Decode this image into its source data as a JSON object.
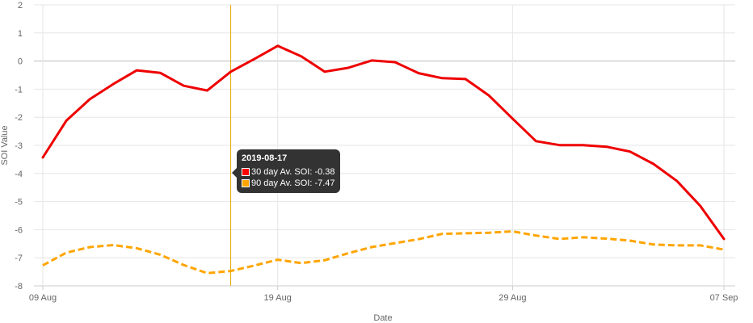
{
  "chart_data": {
    "type": "line",
    "xlabel": "Date",
    "ylabel": "SOI Value",
    "ylim": [
      -8,
      2
    ],
    "yticks": [
      2,
      1,
      0,
      -1,
      -2,
      -3,
      -4,
      -5,
      -6,
      -7,
      -8
    ],
    "x_start": "2019-08-09",
    "x_end": "2019-09-07",
    "xticks": [
      {
        "date": "2019-08-09",
        "label": "09 Aug"
      },
      {
        "date": "2019-08-19",
        "label": "19 Aug"
      },
      {
        "date": "2019-08-29",
        "label": "29 Aug"
      },
      {
        "date": "2019-09-07",
        "label": "07 Sep"
      }
    ],
    "x": [
      "2019-08-09",
      "2019-08-10",
      "2019-08-11",
      "2019-08-12",
      "2019-08-13",
      "2019-08-14",
      "2019-08-15",
      "2019-08-16",
      "2019-08-17",
      "2019-08-18",
      "2019-08-19",
      "2019-08-20",
      "2019-08-21",
      "2019-08-22",
      "2019-08-23",
      "2019-08-24",
      "2019-08-25",
      "2019-08-26",
      "2019-08-27",
      "2019-08-28",
      "2019-08-29",
      "2019-08-30",
      "2019-08-31",
      "2019-09-01",
      "2019-09-02",
      "2019-09-03",
      "2019-09-04",
      "2019-09-05",
      "2019-09-06",
      "2019-09-07"
    ],
    "series": [
      {
        "name": "30 day Av. SOI",
        "color": "#ee0000",
        "dashed": false,
        "values": [
          -3.43,
          -2.12,
          -1.36,
          -0.82,
          -0.33,
          -0.42,
          -0.88,
          -1.05,
          -0.38,
          0.07,
          0.54,
          0.17,
          -0.38,
          -0.24,
          0.02,
          -0.04,
          -0.43,
          -0.61,
          -0.64,
          -1.23,
          -2.05,
          -2.85,
          -2.99,
          -2.99,
          -3.05,
          -3.22,
          -3.66,
          -4.27,
          -5.16,
          -6.33
        ]
      },
      {
        "name": "90 day Av. SOI",
        "color": "#ffa500",
        "dashed": true,
        "values": [
          -7.27,
          -6.82,
          -6.62,
          -6.55,
          -6.66,
          -6.89,
          -7.26,
          -7.55,
          -7.47,
          -7.28,
          -7.07,
          -7.19,
          -7.09,
          -6.84,
          -6.62,
          -6.48,
          -6.34,
          -6.15,
          -6.13,
          -6.11,
          -6.06,
          -6.21,
          -6.33,
          -6.27,
          -6.32,
          -6.39,
          -6.53,
          -6.56,
          -6.56,
          -6.71
        ]
      }
    ],
    "crosshair_date": "2019-08-17",
    "crosshair_color": "#e6a800",
    "zero_line_color": "#bbbbbb",
    "grid_color": "#e6e6e6",
    "grid": true,
    "tooltip": {
      "title": "2019-08-17",
      "rows": [
        {
          "label": "30 day Av. SOI: -0.38",
          "color": "#ff0000"
        },
        {
          "label": "90 day Av. SOI: -7.47",
          "color": "#ffa500"
        }
      ]
    }
  }
}
